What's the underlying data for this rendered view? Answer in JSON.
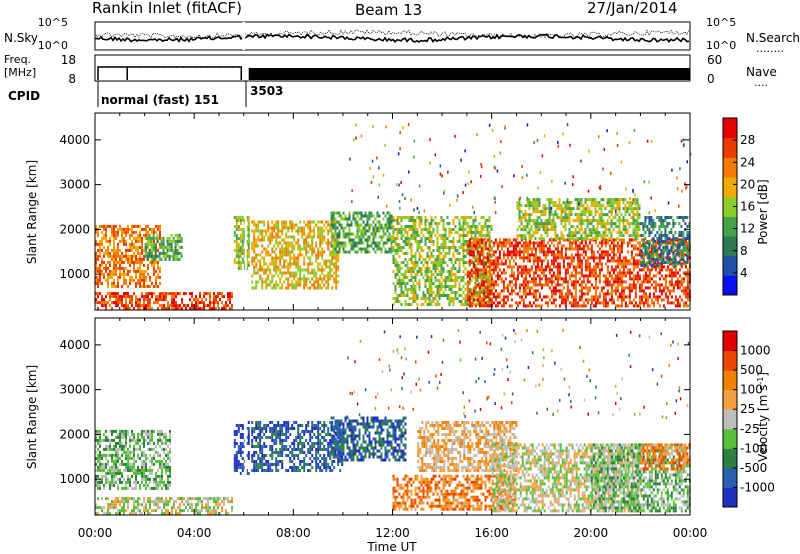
{
  "header": {
    "station": "Rankin Inlet (fitACF)",
    "beam": "Beam 13",
    "date": "27/Jan/2014"
  },
  "side_labels": {
    "nsky": "N.Sky",
    "nsearch": "N.Search",
    "nsearch_dots": "........",
    "freq_line1": "Freq.",
    "freq_line2": "[MHz]",
    "nave": "Nave",
    "nave_dots": "....",
    "cpid": "CPID"
  },
  "cpid_labels": [
    "normal (fast) 151",
    "3503"
  ],
  "xlabel": "Time UT",
  "colors": {
    "power": [
      "#0a10ee",
      "#1f4fa6",
      "#2e7a55",
      "#45a34a",
      "#8ccc2a",
      "#f2a900",
      "#f27a00",
      "#ee3a00",
      "#e60000"
    ],
    "velocity": [
      "#2030c0",
      "#2a5fb0",
      "#2e8040",
      "#58c038",
      "#bdbdbd",
      "#f5a040",
      "#ef8000",
      "#ea4800",
      "#e00000"
    ]
  },
  "chart_data": [
    {
      "type": "line",
      "name": "noise-panel",
      "x_range_hours": [
        0,
        24
      ],
      "y_left_ticks": [
        "10^5",
        "10^0"
      ],
      "y_right_ticks": [
        "10^5",
        "10^0"
      ]
    },
    {
      "type": "line",
      "name": "frequency-panel",
      "x_range_hours": [
        0,
        24
      ],
      "y_left_ticks": [
        "18",
        "8"
      ],
      "y_right_ticks": [
        "60",
        "0"
      ],
      "frequency_mhz": 10,
      "nave_approx": 40
    },
    {
      "type": "heatmap",
      "name": "power",
      "xlabel": "",
      "ylabel": "Slant Range [km]",
      "x_ticks": [
        "00:00",
        "04:00",
        "08:00",
        "12:00",
        "16:00",
        "20:00",
        "00:00"
      ],
      "y_ticks": [
        1000,
        2000,
        3000,
        4000
      ],
      "ylim": [
        200,
        4600
      ],
      "colorbar_label": "Power [dB]",
      "colorbar_ticks": [
        4,
        8,
        12,
        16,
        20,
        24,
        28
      ],
      "colorbar_range": [
        0,
        32
      ],
      "regions": [
        {
          "t": [
            0.0,
            2.6
          ],
          "r": [
            700,
            2100
          ],
          "level": 6
        },
        {
          "t": [
            0.0,
            5.5
          ],
          "r": [
            200,
            600
          ],
          "level": 7
        },
        {
          "t": [
            2.0,
            3.5
          ],
          "r": [
            1300,
            1900
          ],
          "level": 3
        },
        {
          "t": [
            5.6,
            6.2
          ],
          "r": [
            1100,
            2300
          ],
          "level": 4
        },
        {
          "t": [
            6.3,
            9.8
          ],
          "r": [
            700,
            2200
          ],
          "level": 5
        },
        {
          "t": [
            9.5,
            12.0
          ],
          "r": [
            1500,
            2400
          ],
          "level": 3
        },
        {
          "t": [
            12.0,
            16.0
          ],
          "r": [
            300,
            2300
          ],
          "level": 4
        },
        {
          "t": [
            15.0,
            24.0
          ],
          "r": [
            300,
            1800
          ],
          "level": 7
        },
        {
          "t": [
            17.0,
            22.0
          ],
          "r": [
            1800,
            2700
          ],
          "level": 4
        },
        {
          "t": [
            22.0,
            24.0
          ],
          "r": [
            1200,
            2300
          ],
          "level": 2
        }
      ]
    },
    {
      "type": "heatmap",
      "name": "velocity",
      "xlabel": "Time UT",
      "ylabel": "Slant Range [km]",
      "x_ticks": [
        "00:00",
        "04:00",
        "08:00",
        "12:00",
        "16:00",
        "20:00",
        "00:00"
      ],
      "y_ticks": [
        1000,
        2000,
        3000,
        4000
      ],
      "ylim": [
        200,
        4600
      ],
      "colorbar_label": "Velocity [m s^-1]",
      "colorbar_ticks": [
        "1000",
        "500",
        "100",
        "25",
        "-25",
        "-100",
        "-500",
        "-1000"
      ],
      "regions": [
        {
          "t": [
            0.0,
            3.0
          ],
          "r": [
            800,
            2100
          ],
          "level": 3
        },
        {
          "t": [
            0.0,
            5.5
          ],
          "r": [
            200,
            600
          ],
          "level": 4
        },
        {
          "t": [
            5.6,
            6.2
          ],
          "r": [
            1100,
            2300
          ],
          "level": 0
        },
        {
          "t": [
            6.3,
            10.0
          ],
          "r": [
            1200,
            2300
          ],
          "level": 1
        },
        {
          "t": [
            9.5,
            12.5
          ],
          "r": [
            1400,
            2400
          ],
          "level": 1
        },
        {
          "t": [
            12.0,
            17.0
          ],
          "r": [
            300,
            1100
          ],
          "level": 6
        },
        {
          "t": [
            13.0,
            17.0
          ],
          "r": [
            1200,
            2300
          ],
          "level": 5
        },
        {
          "t": [
            16.0,
            22.0
          ],
          "r": [
            300,
            1800
          ],
          "level": 4
        },
        {
          "t": [
            20.0,
            24.0
          ],
          "r": [
            300,
            1800
          ],
          "level": 3
        },
        {
          "t": [
            22.0,
            24.0
          ],
          "r": [
            1200,
            1800
          ],
          "level": 6
        }
      ]
    }
  ]
}
